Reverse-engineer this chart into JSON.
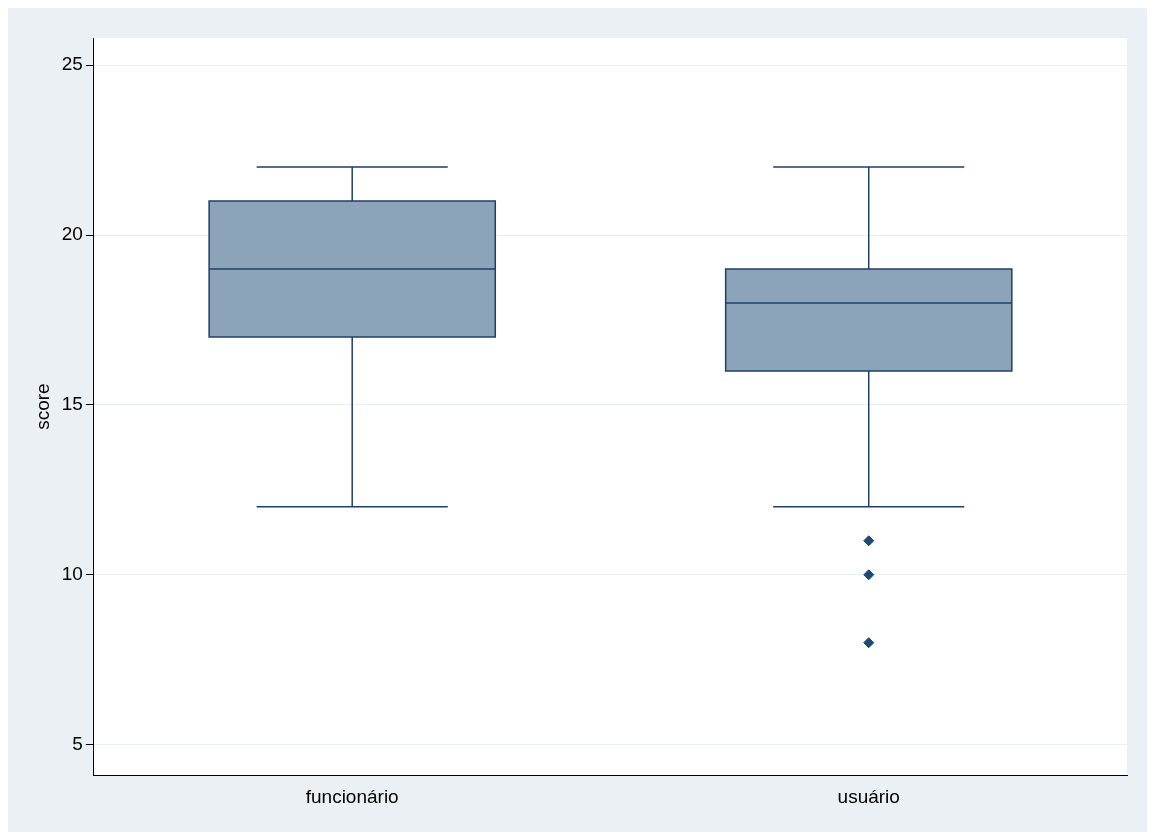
{
  "chart_data": {
    "type": "box",
    "ylabel": "score",
    "categories": [
      "funcionário",
      "usuário"
    ],
    "series": [
      {
        "color": "#8ca4b9",
        "boxes": [
          {
            "low": 12,
            "q1": 17,
            "median": 19,
            "q3": 21,
            "high": 22
          },
          {
            "low": 12,
            "q1": 16,
            "median": 18,
            "q3": 19,
            "high": 22,
            "outliers": [
              11,
              10,
              8
            ]
          }
        ]
      }
    ],
    "ylim": [
      4.1,
      25.8
    ],
    "yticks": [
      5,
      10,
      15,
      20,
      25
    ],
    "grid": "y",
    "legend": false,
    "marker": "diamond"
  }
}
